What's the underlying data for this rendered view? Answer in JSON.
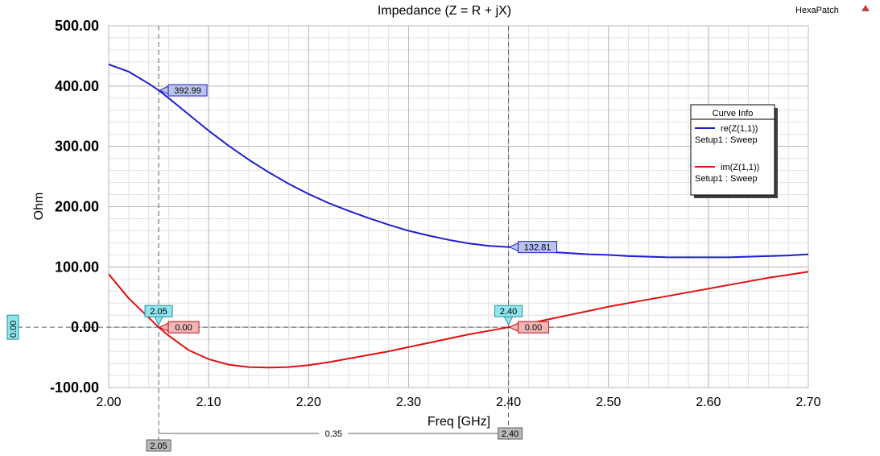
{
  "brand": {
    "label": "HexaPatch"
  },
  "chart_data": {
    "type": "line",
    "title": "Impedance (Z = R + jX)",
    "xlabel": "Freq [GHz]",
    "ylabel": "Ohm",
    "xlim": [
      2.0,
      2.7
    ],
    "ylim": [
      -100,
      500
    ],
    "x_ticks": [
      2.0,
      2.1,
      2.2,
      2.3,
      2.4,
      2.5,
      2.6,
      2.7
    ],
    "x_tick_labels": [
      "2.00",
      "2.10",
      "2.20",
      "2.30",
      "2.40",
      "2.50",
      "2.60",
      "2.70"
    ],
    "y_ticks": [
      -100,
      0,
      100,
      200,
      300,
      400,
      500
    ],
    "y_tick_labels": [
      "-100.00",
      "0.00",
      "100.00",
      "200.00",
      "300.00",
      "400.00",
      "500.00"
    ],
    "grid": true,
    "x": [
      2.0,
      2.02,
      2.04,
      2.05,
      2.06,
      2.08,
      2.1,
      2.12,
      2.14,
      2.16,
      2.18,
      2.2,
      2.22,
      2.24,
      2.26,
      2.28,
      2.3,
      2.32,
      2.34,
      2.36,
      2.38,
      2.4,
      2.42,
      2.44,
      2.46,
      2.48,
      2.5,
      2.52,
      2.54,
      2.56,
      2.58,
      2.6,
      2.62,
      2.64,
      2.66,
      2.68,
      2.7
    ],
    "series": [
      {
        "name": "re(Z(1,1))",
        "sweep": "Setup1 : Sweep",
        "color": "#1f1fd0",
        "values": [
          436,
          424,
          404,
          393,
          380,
          353,
          326,
          301,
          278,
          257,
          238,
          221,
          206,
          193,
          181,
          170,
          160,
          152,
          145,
          139,
          135,
          133,
          128,
          125,
          123,
          121,
          120,
          118,
          117,
          116,
          116,
          116,
          116,
          117,
          118,
          119,
          121
        ]
      },
      {
        "name": "im(Z(1,1))",
        "sweep": "Setup1 : Sweep",
        "color": "#e01010",
        "values": [
          88,
          48,
          16,
          0,
          -14,
          -38,
          -53,
          -62,
          -66,
          -67,
          -66,
          -63,
          -58,
          -52,
          -46,
          -40,
          -33,
          -26,
          -19,
          -12,
          -6,
          0,
          6,
          13,
          20,
          27,
          34,
          40,
          46,
          52,
          58,
          64,
          70,
          76,
          82,
          87,
          92
        ]
      }
    ],
    "markers": [
      {
        "x": 2.05,
        "x_label": "2.05",
        "values": [
          {
            "series": 0,
            "label": "392.99"
          },
          {
            "series": 1,
            "label": "0.00"
          }
        ]
      },
      {
        "x": 2.4,
        "x_label": "2.40",
        "values": [
          {
            "series": 0,
            "label": "132.81"
          },
          {
            "series": 1,
            "label": "0.00"
          }
        ]
      }
    ],
    "y_cursor": {
      "value": 0,
      "label": "0.00"
    },
    "delta": {
      "label": "0.35"
    },
    "legend": {
      "title": "Curve Info",
      "placement": "right"
    }
  }
}
